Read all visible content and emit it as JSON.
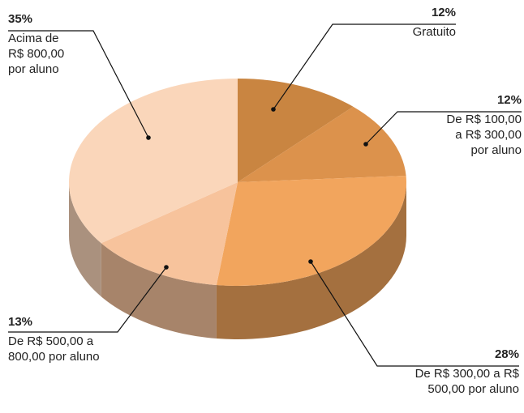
{
  "chart_data": {
    "type": "pie3d",
    "categories": [
      "Gratuito",
      "De R$ 100,00\na R$ 300,00\npor aluno",
      "De R$ 300,00 a R$\n500,00 por aluno",
      "De R$ 500,00 a\n800,00 por aluno",
      "Acima de\nR$ 800,00\npor aluno"
    ],
    "values": [
      12,
      12,
      28,
      13,
      35
    ],
    "value_labels": [
      "12%",
      "12%",
      "28%",
      "13%",
      "35%"
    ],
    "colors": [
      "#c98541",
      "#dc924c",
      "#f2a55d",
      "#f7c39c",
      "#fad6ba"
    ]
  }
}
